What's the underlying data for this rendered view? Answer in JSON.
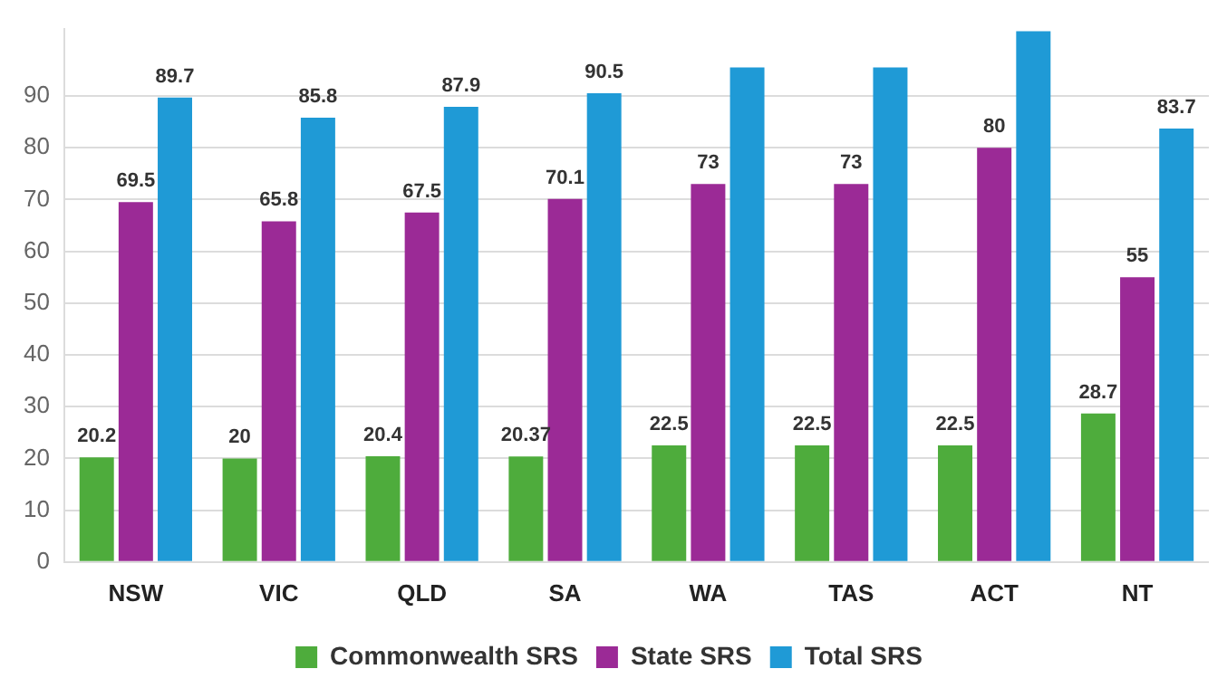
{
  "chart_data": {
    "type": "bar",
    "categories": [
      "NSW",
      "VIC",
      "QLD",
      "SA",
      "WA",
      "TAS",
      "ACT",
      "NT"
    ],
    "series": [
      {
        "name": "Commonwealth SRS",
        "color": "#4eac3c",
        "values": [
          20.2,
          20,
          20.4,
          20.37,
          22.5,
          22.5,
          22.5,
          28.7
        ],
        "value_labels": [
          "20.2",
          "20",
          "20.4",
          "20.37",
          "22.5",
          "22.5",
          "22.5",
          "28.7"
        ]
      },
      {
        "name": "State SRS",
        "color": "#9b2a96",
        "values": [
          69.5,
          65.8,
          67.5,
          70.1,
          73,
          73,
          80,
          55
        ],
        "value_labels": [
          "69.5",
          "65.8",
          "67.5",
          "70.1",
          "73",
          "73",
          "80",
          "55"
        ]
      },
      {
        "name": "Total SRS",
        "color": "#1f9ad6",
        "values": [
          89.7,
          85.8,
          87.9,
          90.5,
          95.5,
          95.5,
          102.5,
          83.7
        ],
        "value_labels": [
          "89.7",
          "85.8",
          "87.9",
          "90.5",
          null,
          null,
          null,
          "83.7"
        ]
      }
    ],
    "ylim": [
      0,
      103
    ],
    "yticks": [
      0,
      10,
      20,
      30,
      40,
      50,
      60,
      70,
      80,
      90
    ],
    "grid": "y",
    "legend": "bottom"
  }
}
